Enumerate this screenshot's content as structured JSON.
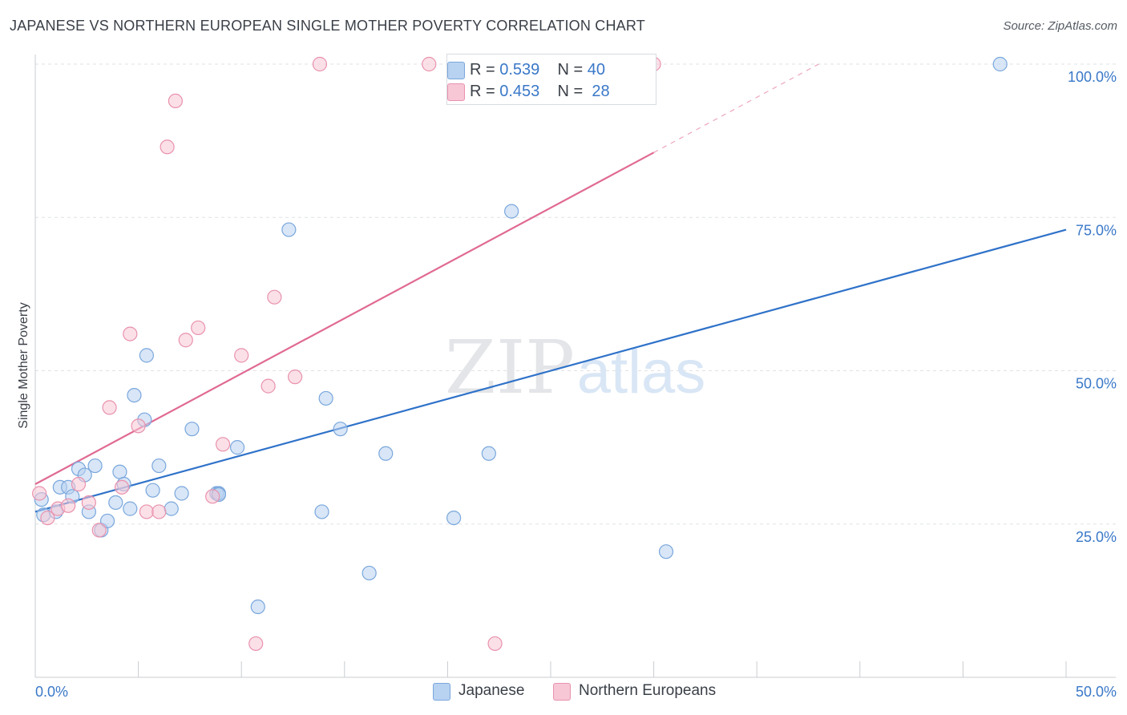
{
  "header": {
    "title": "JAPANESE VS NORTHERN EUROPEAN SINGLE MOTHER POVERTY CORRELATION CHART",
    "source": "Source: ZipAtlas.com"
  },
  "legend": {
    "japanese": {
      "r_label": "R = ",
      "r_value": "0.539",
      "n_label": "N = ",
      "n_value": "40"
    },
    "northern": {
      "r_label": "R = ",
      "r_value": "0.453",
      "n_label": "N = ",
      "n_value": "28"
    }
  },
  "watermark": {
    "zip": "ZIP",
    "atlas": "atlas"
  },
  "colors": {
    "japanese_fill": "#b8d2f1",
    "japanese_stroke": "#7aa7dc",
    "japanese_line": "#2f72c9",
    "northern_fill": "#f7c7d6",
    "northern_stroke": "#e992ad",
    "northern_line": "#e06a93",
    "grid": "#dfe2e6",
    "tick_label": "#3a78c8"
  },
  "chart_data": {
    "type": "scatter",
    "title": "JAPANESE VS NORTHERN EUROPEAN SINGLE MOTHER POVERTY CORRELATION CHART",
    "ylabel": "Single Mother Poverty",
    "xlim": [
      0,
      50
    ],
    "ylim": [
      0,
      100
    ],
    "x_tick_labels": [
      {
        "value": 0,
        "label": "0.0%"
      },
      {
        "value": 50,
        "label": "50.0%"
      }
    ],
    "y_tick_labels": [
      {
        "value": 25,
        "label": "25.0%"
      },
      {
        "value": 50,
        "label": "50.0%"
      },
      {
        "value": 75,
        "label": "75.0%"
      },
      {
        "value": 100,
        "label": "100.0%"
      }
    ],
    "grid": true,
    "legend_position": "top-center",
    "series": [
      {
        "name": "Japanese",
        "trend": {
          "x": [
            0,
            50
          ],
          "y": [
            27.0,
            73.0
          ],
          "dashed_from": null
        },
        "points": [
          [
            0.3,
            29.0
          ],
          [
            0.4,
            26.5
          ],
          [
            1.0,
            27.0
          ],
          [
            1.2,
            31.0
          ],
          [
            1.6,
            31.0
          ],
          [
            1.8,
            29.5
          ],
          [
            2.1,
            34.0
          ],
          [
            2.4,
            33.0
          ],
          [
            2.6,
            27.0
          ],
          [
            2.9,
            34.5
          ],
          [
            3.2,
            24.0
          ],
          [
            3.5,
            25.5
          ],
          [
            3.9,
            28.5
          ],
          [
            4.1,
            33.5
          ],
          [
            4.3,
            31.5
          ],
          [
            4.6,
            27.5
          ],
          [
            4.8,
            46.0
          ],
          [
            5.3,
            42.0
          ],
          [
            5.4,
            52.5
          ],
          [
            5.7,
            30.5
          ],
          [
            6.0,
            34.5
          ],
          [
            6.6,
            27.5
          ],
          [
            7.1,
            30.0
          ],
          [
            7.6,
            40.5
          ],
          [
            8.8,
            30.0
          ],
          [
            8.9,
            30.0
          ],
          [
            9.8,
            37.5
          ],
          [
            10.8,
            11.5
          ],
          [
            12.3,
            73.0
          ],
          [
            13.9,
            27.0
          ],
          [
            14.1,
            45.5
          ],
          [
            14.8,
            40.5
          ],
          [
            16.2,
            17.0
          ],
          [
            17.0,
            36.5
          ],
          [
            20.3,
            26.0
          ],
          [
            22.0,
            36.5
          ],
          [
            23.1,
            76.0
          ],
          [
            30.6,
            20.5
          ],
          [
            46.8,
            100.0
          ],
          [
            8.9,
            29.8
          ]
        ]
      },
      {
        "name": "Northern Europeans",
        "trend": {
          "x": [
            0,
            38
          ],
          "y": [
            31.5,
            100.0
          ],
          "dashed_from": 30
        },
        "points": [
          [
            0.2,
            30.0
          ],
          [
            0.6,
            26.0
          ],
          [
            1.1,
            27.5
          ],
          [
            1.6,
            28.0
          ],
          [
            2.1,
            31.5
          ],
          [
            2.6,
            28.5
          ],
          [
            3.1,
            24.0
          ],
          [
            3.6,
            44.0
          ],
          [
            4.2,
            31.0
          ],
          [
            4.6,
            56.0
          ],
          [
            5.0,
            41.0
          ],
          [
            5.4,
            27.0
          ],
          [
            6.0,
            27.0
          ],
          [
            6.4,
            86.5
          ],
          [
            6.8,
            94.0
          ],
          [
            7.3,
            55.0
          ],
          [
            7.9,
            57.0
          ],
          [
            8.6,
            29.5
          ],
          [
            9.1,
            38.0
          ],
          [
            10.0,
            52.5
          ],
          [
            10.7,
            5.5
          ],
          [
            11.3,
            47.5
          ],
          [
            11.6,
            62.0
          ],
          [
            12.6,
            49.0
          ],
          [
            13.8,
            100.0
          ],
          [
            19.1,
            100.0
          ],
          [
            22.3,
            5.5
          ],
          [
            30.0,
            100.0
          ]
        ]
      }
    ]
  },
  "bottom_legend": {
    "japanese": "Japanese",
    "northern": "Northern Europeans"
  }
}
